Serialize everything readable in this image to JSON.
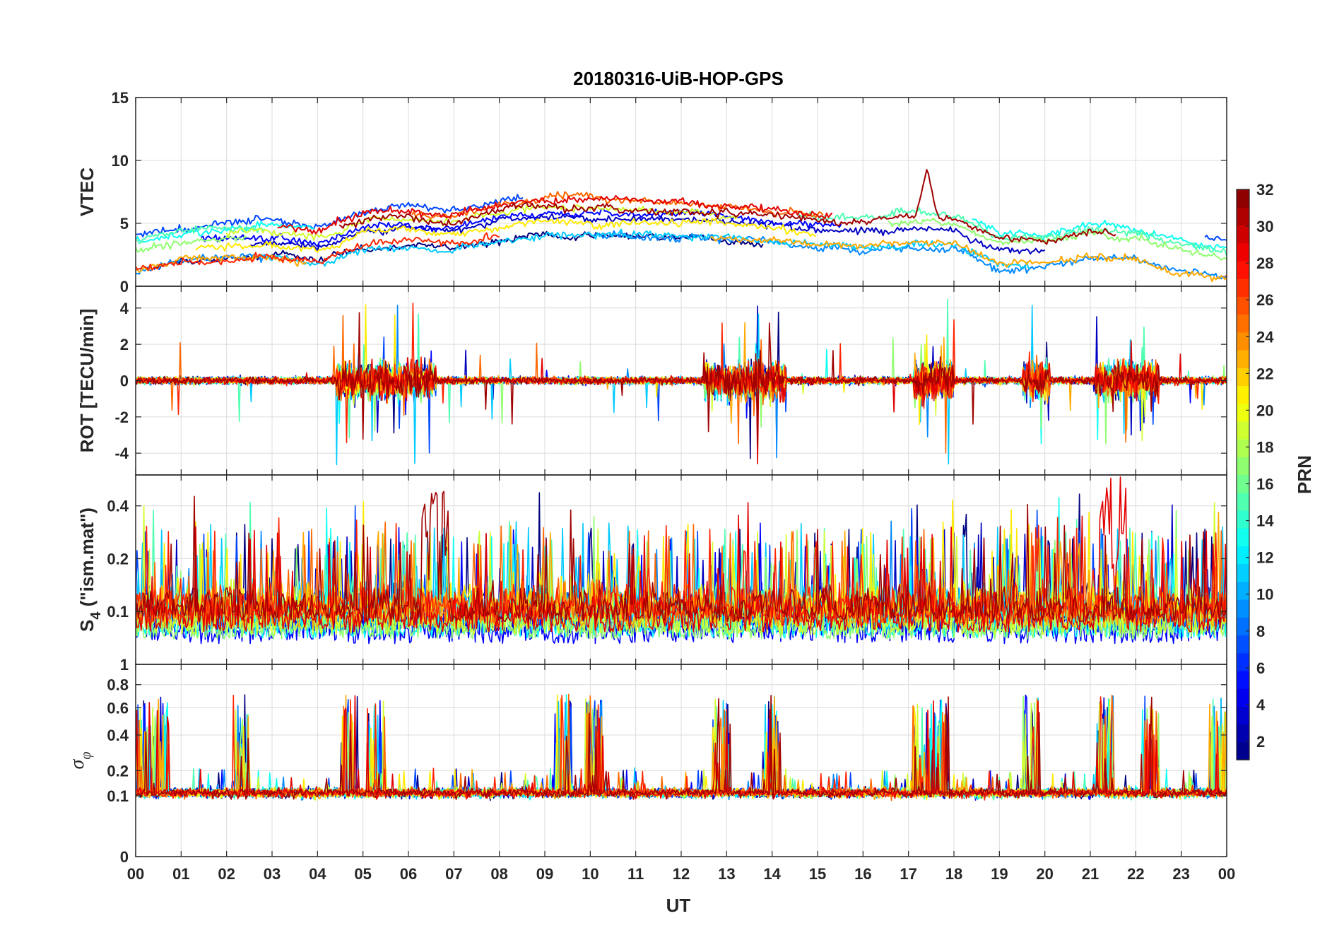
{
  "chart_data": {
    "type": "line",
    "title": "20180316-UiB-HOP-GPS",
    "xlabel": "UT",
    "x_ticks": [
      "00",
      "01",
      "02",
      "03",
      "04",
      "05",
      "06",
      "07",
      "08",
      "09",
      "10",
      "11",
      "12",
      "13",
      "14",
      "15",
      "16",
      "17",
      "18",
      "19",
      "20",
      "21",
      "22",
      "23",
      "00"
    ],
    "x_range_hours": [
      0,
      24
    ],
    "grid": true,
    "panels": [
      {
        "key": "vtec",
        "ylabel": "VTEC",
        "ylim": [
          0,
          15
        ],
        "y_ticks": [
          0,
          5,
          10,
          15
        ],
        "y_tick_labels": [
          "0",
          "5",
          "10",
          "15"
        ],
        "series_summary": {
          "background_range": [
            1,
            8
          ],
          "peak_hour": 17.4,
          "peak_value": 9.4
        },
        "mean_profile_hours": [
          0,
          1,
          2,
          3,
          4,
          5,
          6,
          7,
          8,
          9,
          10,
          11,
          12,
          13,
          14,
          15,
          16,
          17,
          18,
          19,
          20,
          21,
          22,
          23,
          24
        ],
        "mean_profile_values": [
          2.5,
          3.2,
          3.5,
          3.6,
          3.2,
          4.5,
          4.8,
          4.5,
          5.2,
          5.6,
          5.5,
          5.5,
          5.4,
          5.2,
          5.0,
          4.6,
          4.5,
          4.8,
          4.6,
          3.0,
          3.0,
          3.6,
          3.4,
          2.5,
          2.0
        ]
      },
      {
        "key": "rot",
        "ylabel": "ROT [TECU/min]",
        "ylim": [
          -5.2,
          5.2
        ],
        "y_ticks": [
          -4,
          -2,
          0,
          2,
          4
        ],
        "y_tick_labels": [
          "-4",
          "-2",
          "0",
          "2",
          "4"
        ],
        "series_summary": {
          "active_intervals_hours": [
            [
              4.4,
              6.6
            ],
            [
              12.5,
              14.3
            ],
            [
              17.1,
              18.0
            ],
            [
              19.5,
              20.1
            ],
            [
              21.1,
              22.5
            ]
          ],
          "max": 5.0,
          "min": -4.8
        }
      },
      {
        "key": "s4",
        "ylabel": "S4 (\"ism.mat\")",
        "ylabel_main": "S",
        "ylabel_sub": "4",
        "ylabel_rest": " (\"ism.mat\")",
        "ylim": [
          0.05,
          0.6
        ],
        "y_ticks": [
          0.1,
          0.2,
          0.4
        ],
        "y_tick_labels": [
          "0.1",
          "0.2",
          "0.4"
        ],
        "scale": "log",
        "series_summary": {
          "baseline": 0.07,
          "max": 0.6,
          "peak_hours": [
            6.6,
            21.5
          ]
        }
      },
      {
        "key": "sigma",
        "ylabel": "σφ",
        "ylabel_main": "σ",
        "ylabel_sub": "φ",
        "ylim": [
          0,
          1
        ],
        "y_ticks": [
          0,
          0.1,
          0.2,
          0.4,
          0.6,
          0.8,
          1
        ],
        "y_tick_labels": [
          "0",
          "0.1",
          "0.2",
          "0.4",
          "0.6",
          "0.8",
          "1"
        ],
        "scale": "sqrt",
        "series_summary": {
          "baseline": 0.11,
          "spike_hours": [
            0.2,
            0.55,
            2.3,
            4.7,
            5.3,
            9.4,
            10.1,
            12.9,
            14.0,
            17.3,
            17.7,
            19.7,
            21.3,
            22.3,
            23.8
          ]
        }
      }
    ],
    "colorbar": {
      "label": "PRN",
      "range": [
        1,
        32
      ],
      "ticks": [
        2,
        4,
        6,
        8,
        10,
        12,
        14,
        16,
        18,
        20,
        22,
        24,
        26,
        28,
        30,
        32
      ],
      "colormap": "jet",
      "levels": 32
    },
    "series": [
      {
        "name": "PRN 1",
        "prn": 1
      },
      {
        "name": "PRN 3",
        "prn": 3
      },
      {
        "name": "PRN 5",
        "prn": 5
      },
      {
        "name": "PRN 7",
        "prn": 7
      },
      {
        "name": "PRN 9",
        "prn": 9
      },
      {
        "name": "PRN 11",
        "prn": 11
      },
      {
        "name": "PRN 13",
        "prn": 13
      },
      {
        "name": "PRN 15",
        "prn": 15
      },
      {
        "name": "PRN 17",
        "prn": 17
      },
      {
        "name": "PRN 19",
        "prn": 19
      },
      {
        "name": "PRN 21",
        "prn": 21
      },
      {
        "name": "PRN 23",
        "prn": 23
      },
      {
        "name": "PRN 25",
        "prn": 25
      },
      {
        "name": "PRN 27",
        "prn": 27
      },
      {
        "name": "PRN 29",
        "prn": 29
      },
      {
        "name": "PRN 31",
        "prn": 31
      }
    ]
  }
}
